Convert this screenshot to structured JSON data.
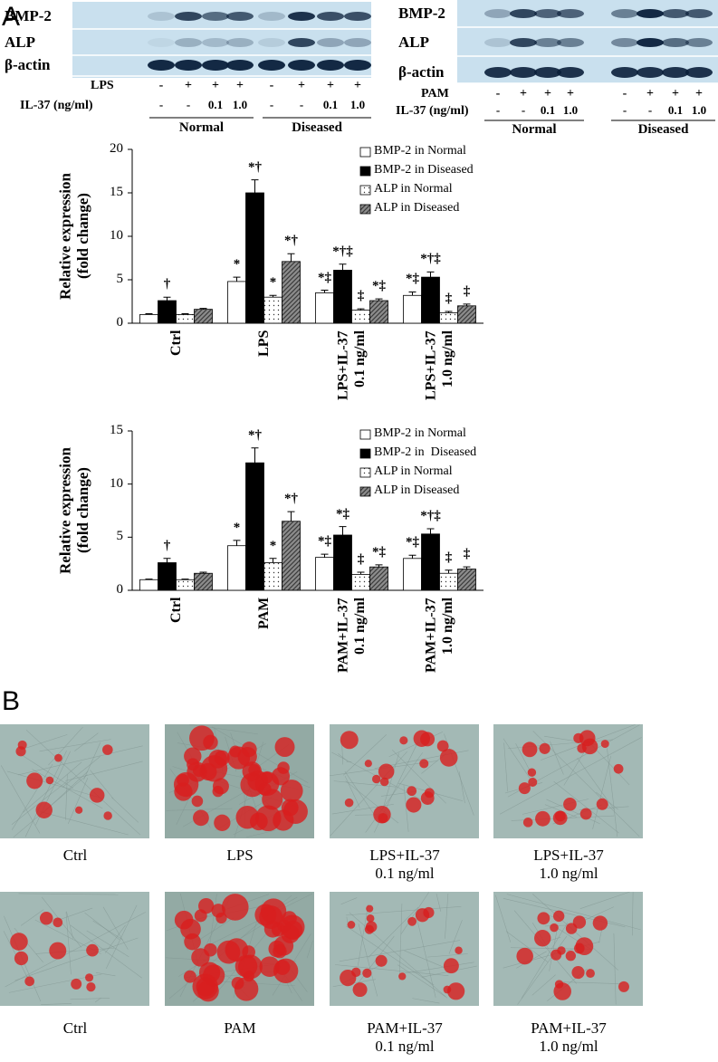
{
  "panel_labels": [
    "A",
    "B"
  ],
  "blots": [
    {
      "rows": [
        "BMP-2",
        "ALP",
        "β-actin"
      ],
      "treatment": {
        "label": "LPS",
        "values": [
          "-",
          "+",
          "+",
          "+",
          "-",
          "+",
          "+",
          "+"
        ]
      },
      "dose": {
        "label": "IL-37 (ng/ml)",
        "values": [
          "-",
          "-",
          "0.1",
          "1.0",
          "-",
          "-",
          "0.1",
          "1.0"
        ]
      },
      "groups": [
        "Normal",
        "Diseased"
      ]
    },
    {
      "rows": [
        "BMP-2",
        "ALP",
        "β-actin"
      ],
      "treatment": {
        "label": "PAM",
        "values": [
          "-",
          "+",
          "+",
          "+",
          "-",
          "+",
          "+",
          "+"
        ]
      },
      "dose": {
        "label": "IL-37 (ng/ml)",
        "values": [
          "-",
          "-",
          "0.1",
          "1.0",
          "-",
          "-",
          "0.1",
          "1.0"
        ]
      },
      "groups": [
        "Normal",
        "Diseased"
      ]
    }
  ],
  "chart_data": [
    {
      "type": "bar",
      "ylabel": "Relative expression\n(fold change)",
      "categories": [
        "Ctrl",
        "LPS",
        "LPS+IL-37\n0.1 ng/ml",
        "LPS+IL-37\n1.0 ng/ml"
      ],
      "ylim": [
        0,
        20
      ],
      "yticks": [
        0,
        5,
        10,
        15,
        20
      ],
      "legend": "top-right",
      "series": [
        {
          "name": "BMP-2 in Normal",
          "color": "#ffffff",
          "values": [
            1,
            4.8,
            3.5,
            3.2
          ],
          "errors": [
            0.1,
            0.5,
            0.3,
            0.4
          ],
          "annotations": [
            null,
            "*",
            "*‡",
            "*‡"
          ]
        },
        {
          "name": "BMP-2 in Diseased",
          "color": "#000000",
          "values": [
            2.6,
            15,
            6.1,
            5.3
          ],
          "errors": [
            0.4,
            1.5,
            0.7,
            0.6
          ],
          "annotations": [
            "†",
            "*†",
            "*†‡",
            "*†‡"
          ]
        },
        {
          "name": "ALP in Normal",
          "color": "#ffffff",
          "pattern": "dots",
          "values": [
            1,
            3,
            1.5,
            1.2
          ],
          "errors": [
            0.1,
            0.2,
            0.15,
            0.15
          ],
          "annotations": [
            null,
            "*",
            "‡",
            "‡"
          ]
        },
        {
          "name": "ALP in Diseased",
          "color": "#8c8c8c",
          "pattern": "hatch",
          "values": [
            1.6,
            7.1,
            2.6,
            2
          ],
          "errors": [
            0.1,
            0.9,
            0.2,
            0.2
          ],
          "annotations": [
            null,
            "*†",
            "*‡",
            "‡"
          ]
        }
      ]
    },
    {
      "type": "bar",
      "ylabel": "Relative expression\n(fold change)",
      "categories": [
        "Ctrl",
        "PAM",
        "PAM+IL-37\n0.1 ng/ml",
        "PAM+IL-37\n1.0 ng/ml"
      ],
      "ylim": [
        0,
        15
      ],
      "yticks": [
        0,
        5,
        10,
        15
      ],
      "legend": "top-right",
      "series": [
        {
          "name": "BMP-2 in Normal",
          "color": "#ffffff",
          "values": [
            1,
            4.2,
            3.1,
            3
          ],
          "errors": [
            0.05,
            0.5,
            0.3,
            0.3
          ],
          "annotations": [
            null,
            "*",
            "*‡",
            "*‡"
          ]
        },
        {
          "name": "BMP-2 in  Diseased",
          "color": "#000000",
          "values": [
            2.6,
            12,
            5.2,
            5.3
          ],
          "errors": [
            0.4,
            1.4,
            0.8,
            0.5
          ],
          "annotations": [
            "†",
            "*†",
            "*‡",
            "*†‡"
          ]
        },
        {
          "name": "ALP in Normal",
          "color": "#ffffff",
          "pattern": "dots",
          "values": [
            1,
            2.6,
            1.5,
            1.6
          ],
          "errors": [
            0.05,
            0.4,
            0.2,
            0.3
          ],
          "annotations": [
            null,
            "*",
            "‡",
            "‡"
          ]
        },
        {
          "name": "ALP in Diseased",
          "color": "#8c8c8c",
          "pattern": "hatch",
          "values": [
            1.6,
            6.5,
            2.2,
            2
          ],
          "errors": [
            0.1,
            0.9,
            0.2,
            0.2
          ],
          "annotations": [
            null,
            "*†",
            "*‡",
            "‡"
          ]
        }
      ]
    }
  ],
  "images": {
    "labels": [
      [
        "Ctrl",
        "LPS",
        "LPS+IL-37\n0.1 ng/ml",
        "LPS+IL-37\n1.0 ng/ml"
      ],
      [
        "Ctrl",
        "PAM",
        "PAM+IL-37\n0.1 ng/ml",
        "PAM+IL-37\n1.0 ng/ml"
      ]
    ]
  }
}
